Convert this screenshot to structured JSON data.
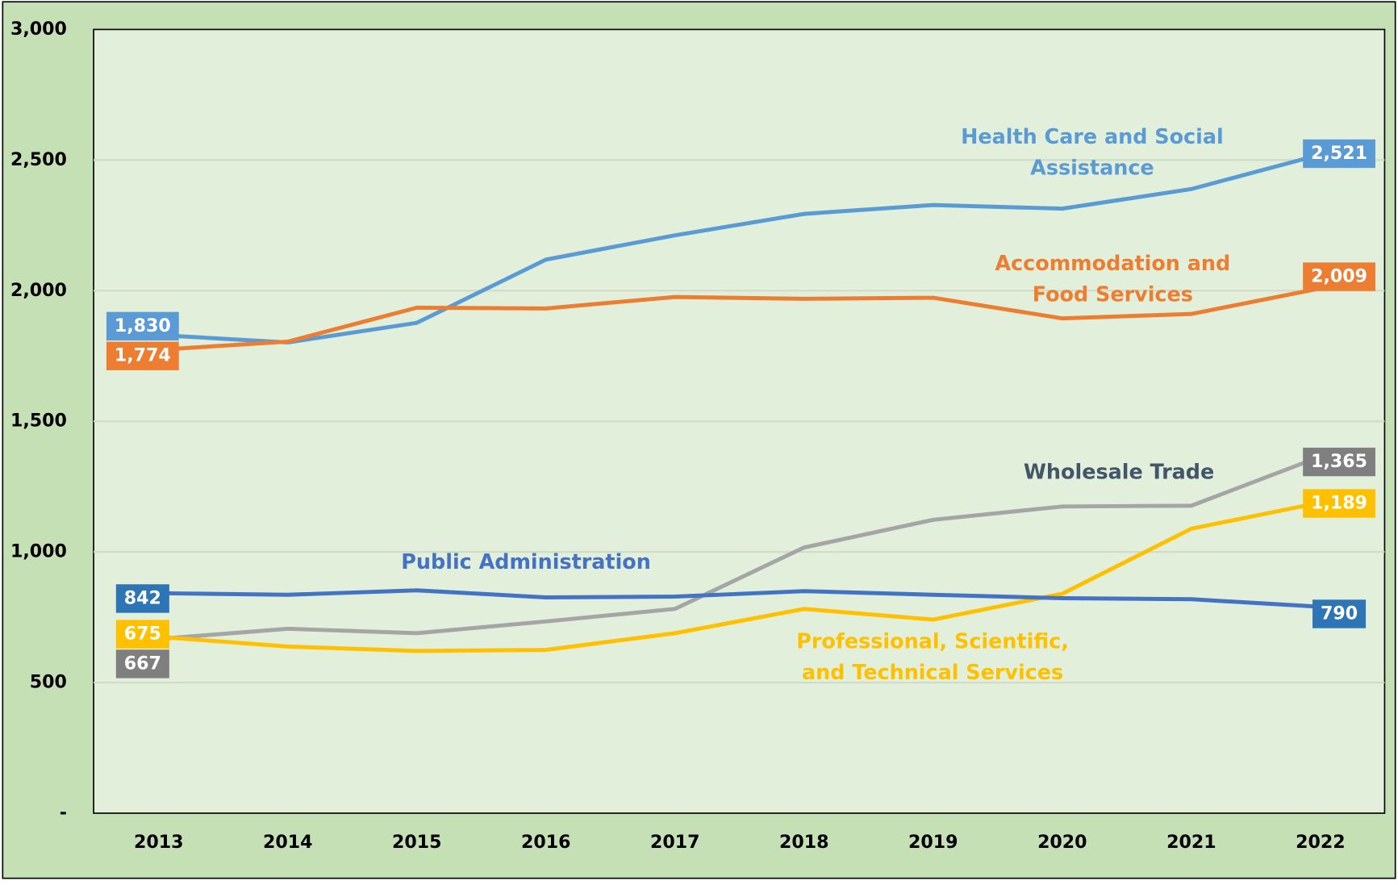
{
  "chart_data": {
    "type": "line",
    "categories": [
      "2013",
      "2014",
      "2015",
      "2016",
      "2017",
      "2018",
      "2019",
      "2020",
      "2021",
      "2022"
    ],
    "series": [
      {
        "name": "Health Care and Social Assistance",
        "color": "#5b9bd5",
        "name_color": "#5b9bd5",
        "label_color": "#5b9bd5",
        "values": [
          1830,
          1802,
          1877,
          2119,
          2212,
          2294,
          2328,
          2314,
          2389,
          2521
        ],
        "value_labels": [
          "1,830",
          null,
          null,
          null,
          null,
          null,
          null,
          null,
          null,
          "2,521"
        ]
      },
      {
        "name": "Accommodation and Food Services",
        "color": "#ed7d31",
        "name_color": "#ed7d31",
        "label_color": "#ed7d31",
        "values": [
          1774,
          1805,
          1935,
          1932,
          1976,
          1969,
          1973,
          1894,
          1911,
          2009
        ],
        "value_labels": [
          "1,774",
          null,
          null,
          null,
          null,
          null,
          null,
          null,
          null,
          "2,009"
        ]
      },
      {
        "name": "Wholesale Trade",
        "color": "#a5a5a5",
        "name_color": "#44546a",
        "label_color": "#7f7f7f",
        "values": [
          667,
          706,
          689,
          734,
          782,
          1017,
          1123,
          1174,
          1177,
          1365
        ],
        "value_labels": [
          "667",
          null,
          null,
          null,
          null,
          null,
          null,
          null,
          null,
          "1,365"
        ]
      },
      {
        "name": "Professional, Scientific, and Technical Services",
        "color": "#ffc000",
        "name_color": "#ffc000",
        "label_color": "#ffc000",
        "values": [
          675,
          638,
          621,
          625,
          689,
          782,
          741,
          840,
          1089,
          1189
        ],
        "value_labels": [
          "675",
          null,
          null,
          null,
          null,
          null,
          null,
          null,
          null,
          "1,189"
        ]
      },
      {
        "name": "Public Administration",
        "color": "#4472c4",
        "name_color": "#4472c4",
        "label_color": "#2e75b6",
        "values": [
          842,
          836,
          853,
          826,
          829,
          850,
          836,
          823,
          819,
          790
        ],
        "value_labels": [
          "842",
          null,
          null,
          null,
          null,
          null,
          null,
          null,
          null,
          "790"
        ]
      }
    ],
    "ylim": [
      0,
      3000
    ],
    "yticks": [
      {
        "value": 0,
        "label": "-"
      },
      500,
      {
        "value": 1000,
        "label": "1,000"
      },
      {
        "value": 1500,
        "label": "1,500"
      },
      {
        "value": 2000,
        "label": "2,000"
      },
      {
        "value": 2500,
        "label": "2,500"
      },
      {
        "value": 3000,
        "label": "3,000"
      }
    ],
    "grid": true
  }
}
